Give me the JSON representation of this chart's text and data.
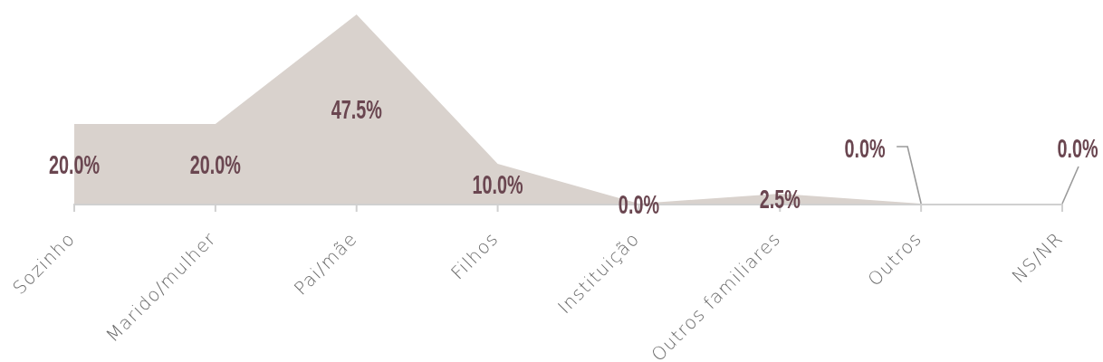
{
  "chart_data": {
    "type": "area",
    "categories": [
      "Sozinho",
      "Marido/mulher",
      "Pai/mãe",
      "Filhos",
      "Instituição",
      "Outros familiares",
      "Outros",
      "NS/NR"
    ],
    "values": [
      20,
      20,
      47.5,
      10,
      0,
      2.5,
      0,
      0
    ],
    "color": "#d9d2cd",
    "value_labels": [
      "20.0%",
      "20.0%",
      "47.5%",
      "10.0%",
      "0.0%",
      "2.5%",
      "0.0%",
      "0.0%"
    ]
  }
}
